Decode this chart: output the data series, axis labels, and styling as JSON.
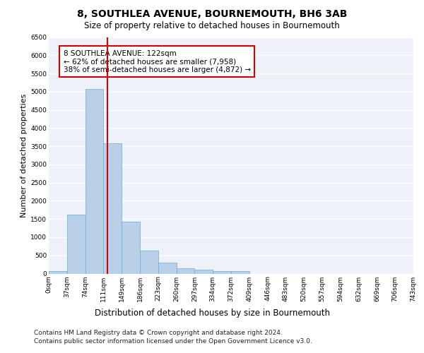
{
  "title": "8, SOUTHLEA AVENUE, BOURNEMOUTH, BH6 3AB",
  "subtitle": "Size of property relative to detached houses in Bournemouth",
  "xlabel": "Distribution of detached houses by size in Bournemouth",
  "ylabel": "Number of detached properties",
  "footnote1": "Contains HM Land Registry data © Crown copyright and database right 2024.",
  "footnote2": "Contains public sector information licensed under the Open Government Licence v3.0.",
  "bar_values": [
    75,
    1625,
    5075,
    3575,
    1425,
    625,
    300,
    150,
    100,
    75,
    75,
    0,
    0,
    0,
    0,
    0,
    0,
    0,
    0,
    0
  ],
  "bin_labels": [
    "0sqm",
    "37sqm",
    "74sqm",
    "111sqm",
    "149sqm",
    "186sqm",
    "223sqm",
    "260sqm",
    "297sqm",
    "334sqm",
    "372sqm",
    "409sqm",
    "446sqm",
    "483sqm",
    "520sqm",
    "557sqm",
    "594sqm",
    "632sqm",
    "669sqm",
    "706sqm",
    "743sqm"
  ],
  "bar_color": "#b8d0e8",
  "bar_edge_color": "#6aaad4",
  "property_line_x": 2.7,
  "property_line_color": "#cc0000",
  "annotation_text": "8 SOUTHLEA AVENUE: 122sqm\n← 62% of detached houses are smaller (7,958)\n38% of semi-detached houses are larger (4,872) →",
  "annotation_box_color": "#cc0000",
  "ylim": [
    0,
    6500
  ],
  "yticks": [
    0,
    500,
    1000,
    1500,
    2000,
    2500,
    3000,
    3500,
    4000,
    4500,
    5000,
    5500,
    6000,
    6500
  ],
  "background_color": "#eef2f8",
  "grid_color": "#ffffff",
  "title_fontsize": 10,
  "subtitle_fontsize": 8.5,
  "xlabel_fontsize": 8.5,
  "ylabel_fontsize": 8,
  "tick_fontsize": 6.5,
  "footnote_fontsize": 6.5,
  "annot_fontsize": 7.5
}
